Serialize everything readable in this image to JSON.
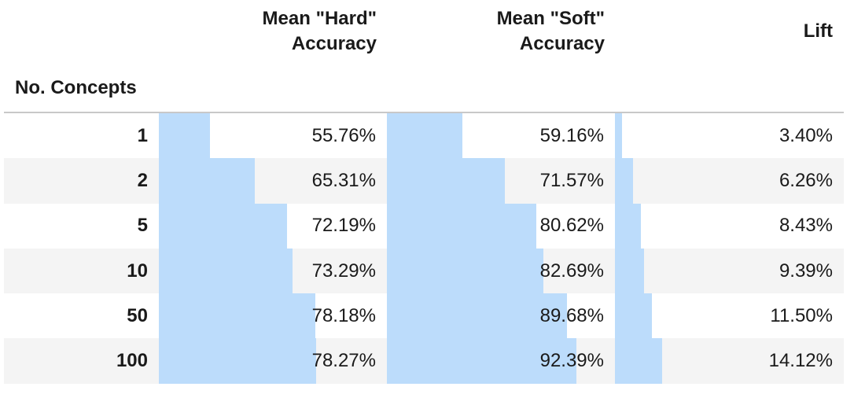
{
  "table": {
    "index_header": "No. Concepts",
    "columns": [
      {
        "key": "hard",
        "header_line1": "Mean \"Hard\"",
        "header_line2": "Accuracy"
      },
      {
        "key": "soft",
        "header_line1": "Mean \"Soft\"",
        "header_line2": "Accuracy"
      },
      {
        "key": "lift",
        "header_line1": "Lift",
        "header_line2": ""
      }
    ],
    "bar_color": "#bcdcfb",
    "stripe_color": "#f4f4f4"
  },
  "chart_data": {
    "type": "table",
    "index_label": "No. Concepts",
    "rows": [
      {
        "concepts": "1",
        "hard": "55.76%",
        "soft": "59.16%",
        "lift": "3.40%",
        "hard_val": 55.76,
        "soft_val": 59.16,
        "lift_val": 3.4
      },
      {
        "concepts": "2",
        "hard": "65.31%",
        "soft": "71.57%",
        "lift": "6.26%",
        "hard_val": 65.31,
        "soft_val": 71.57,
        "lift_val": 6.26
      },
      {
        "concepts": "5",
        "hard": "72.19%",
        "soft": "80.62%",
        "lift": "8.43%",
        "hard_val": 72.19,
        "soft_val": 80.62,
        "lift_val": 8.43
      },
      {
        "concepts": "10",
        "hard": "73.29%",
        "soft": "82.69%",
        "lift": "9.39%",
        "hard_val": 73.29,
        "soft_val": 82.69,
        "lift_val": 9.39
      },
      {
        "concepts": "50",
        "hard": "78.18%",
        "soft": "89.68%",
        "lift": "11.50%",
        "hard_val": 78.18,
        "soft_val": 89.68,
        "lift_val": 11.5
      },
      {
        "concepts": "100",
        "hard": "78.27%",
        "soft": "92.39%",
        "lift": "14.12%",
        "hard_val": 78.27,
        "soft_val": 92.39,
        "lift_val": 14.12
      }
    ]
  }
}
